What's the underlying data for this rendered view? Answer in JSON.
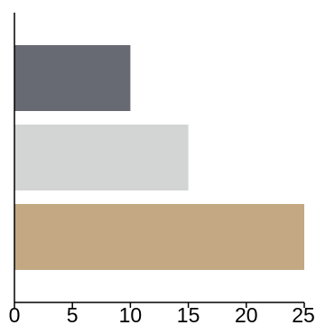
{
  "chart_data": {
    "type": "bar",
    "orientation": "horizontal",
    "categories": [
      "",
      "",
      ""
    ],
    "values": [
      10,
      15,
      25
    ],
    "bar_colors": [
      "#676a72",
      "#d3d5d4",
      "#c4a883"
    ],
    "xlim": [
      0,
      25
    ],
    "xticks": [
      "0",
      "5",
      "10",
      "15",
      "20",
      "25"
    ],
    "grid": false,
    "title": "",
    "xlabel": "",
    "ylabel": ""
  },
  "colors": {
    "axis": "#000000",
    "background": "#ffffff"
  }
}
